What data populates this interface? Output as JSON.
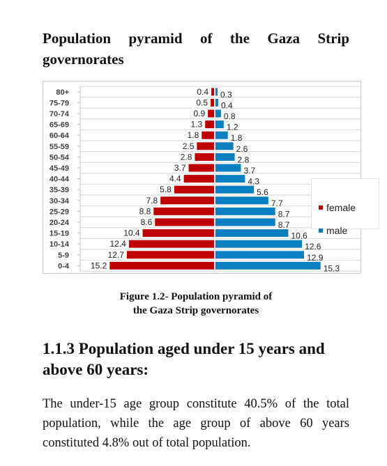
{
  "page": {
    "title": "Population pyramid of the Gaza Strip governorates",
    "caption_line1": "Figure 1.2- Population pyramid of",
    "caption_line2": "the Gaza Strip governorates",
    "section_heading": "1.1.3 Population aged under 15 years and above 60 years:",
    "paragraph": "The under-15 age group constitute 40.5% of the total population, while the age group of above 60 years constituted 4.8% out of total population."
  },
  "colors": {
    "female": "#c00000",
    "male": "#0a7fc2",
    "grid": "#d9d9d9"
  },
  "chart_data": {
    "type": "bar",
    "orientation": "horizontal-pyramid",
    "title": "",
    "categories": [
      "80+",
      "75-79",
      "70-74",
      "65-69",
      "60-64",
      "55-59",
      "50-54",
      "45-49",
      "40-44",
      "35-39",
      "30-34",
      "25-29",
      "20-24",
      "15-19",
      "10-14",
      "5-9",
      "0-4"
    ],
    "series": [
      {
        "name": "female",
        "side": "left",
        "values": [
          0.4,
          0.5,
          0.9,
          1.3,
          1.8,
          2.5,
          2.8,
          3.7,
          4.4,
          5.8,
          7.8,
          8.8,
          8.6,
          10.4,
          12.4,
          12.7,
          15.2
        ]
      },
      {
        "name": "male",
        "side": "right",
        "values": [
          0.3,
          0.4,
          0.8,
          1.2,
          1.8,
          2.6,
          2.8,
          3.7,
          4.3,
          5.6,
          7.7,
          8.7,
          8.7,
          10.6,
          12.6,
          12.9,
          15.3
        ]
      }
    ],
    "legend_position": "top-right",
    "grid": true
  }
}
